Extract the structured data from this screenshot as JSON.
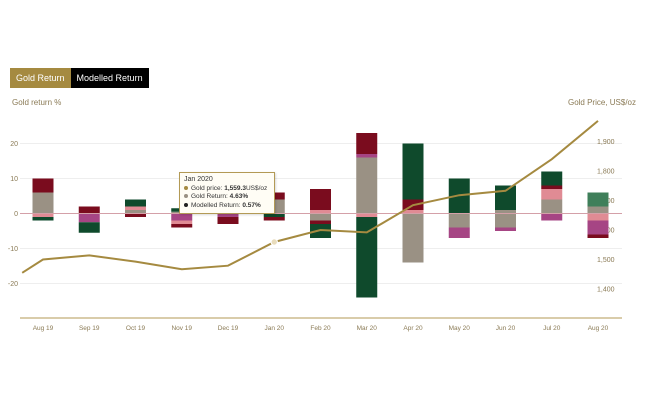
{
  "tabs": [
    {
      "label": "Gold Return",
      "active": true
    },
    {
      "label": "Modelled Return",
      "active": false
    }
  ],
  "colors": {
    "gold": "#a58a40",
    "dark_red": "#7a0c1e",
    "dark_green": "#0f4a2c",
    "grey": "#9a9184",
    "pink": "#e08b94",
    "magenta": "#a64584",
    "mid_green": "#3f7f5a"
  },
  "tooltip": {
    "title": "Jan 2020",
    "gold_price_label": "Gold price: ",
    "gold_price_value": "1,559.3",
    "gold_price_unit": "US$/oz",
    "gold_return_label": "Gold Return: ",
    "gold_return_value": "4.63%",
    "modelled_return_label": "Modelled Return: ",
    "modelled_return_value": "0.57%"
  },
  "chart_data": {
    "type": "bar",
    "ylabel_left": "Gold return %",
    "ylabel_right": "Gold Price, US$/oz",
    "ylim_left": [
      -30,
      30
    ],
    "ylim_right": [
      1300,
      2000
    ],
    "left_ticks": [
      "20",
      "10",
      "0",
      "-10",
      "-20"
    ],
    "left_tick_values": [
      20,
      10,
      0,
      -10,
      -20
    ],
    "right_ticks": [
      "1,900",
      "1,800",
      "1,700",
      "1,600",
      "1,500",
      "1,400"
    ],
    "right_tick_values": [
      1900,
      1800,
      1700,
      1600,
      1500,
      1400
    ],
    "categories": [
      "Aug 19",
      "Sep 19",
      "Oct 19",
      "Nov 19",
      "Dec 19",
      "Jan 20",
      "Feb 20",
      "Mar 20",
      "Apr 20",
      "May 20",
      "Jun 20",
      "Jul 20",
      "Aug 20"
    ],
    "stacked_bars": [
      [
        {
          "c": "grey",
          "v": 1
        },
        {
          "c": "grey",
          "v": 5
        },
        {
          "c": "dark_red",
          "v": 4
        },
        {
          "c": "pink",
          "v": -1
        },
        {
          "c": "dark_green",
          "v": -1
        }
      ],
      [
        {
          "c": "dark_red",
          "v": 2
        },
        {
          "c": "magenta",
          "v": -2.5
        },
        {
          "c": "dark_green",
          "v": -3
        }
      ],
      [
        {
          "c": "grey",
          "v": 1
        },
        {
          "c": "pink",
          "v": 1
        },
        {
          "c": "dark_green",
          "v": 2
        },
        {
          "c": "dark_red",
          "v": -1
        }
      ],
      [
        {
          "c": "grey",
          "v": 0.5
        },
        {
          "c": "dark_green",
          "v": 1
        },
        {
          "c": "magenta",
          "v": -2
        },
        {
          "c": "pink",
          "v": -1
        },
        {
          "c": "dark_red",
          "v": -1
        }
      ],
      [
        {
          "c": "grey",
          "v": 1
        },
        {
          "c": "pink",
          "v": 1
        },
        {
          "c": "magenta",
          "v": -1
        },
        {
          "c": "dark_red",
          "v": -2
        }
      ],
      [
        {
          "c": "grey",
          "v": 4
        },
        {
          "c": "dark_red",
          "v": 2
        },
        {
          "c": "dark_green",
          "v": -1
        },
        {
          "c": "dark_red",
          "v": -1
        }
      ],
      [
        {
          "c": "pink",
          "v": 1
        },
        {
          "c": "dark_red",
          "v": 6
        },
        {
          "c": "grey",
          "v": -2
        },
        {
          "c": "dark_red",
          "v": -1
        },
        {
          "c": "dark_green",
          "v": -4
        }
      ],
      [
        {
          "c": "grey",
          "v": 16
        },
        {
          "c": "magenta",
          "v": 1
        },
        {
          "c": "dark_red",
          "v": 6
        },
        {
          "c": "pink",
          "v": -1
        },
        {
          "c": "dark_green",
          "v": -23
        }
      ],
      [
        {
          "c": "pink",
          "v": 1
        },
        {
          "c": "dark_red",
          "v": 3
        },
        {
          "c": "dark_green",
          "v": 16
        },
        {
          "c": "grey",
          "v": -14
        }
      ],
      [
        {
          "c": "dark_green",
          "v": 10
        },
        {
          "c": "grey",
          "v": -4
        },
        {
          "c": "magenta",
          "v": -3
        }
      ],
      [
        {
          "c": "grey",
          "v": 1
        },
        {
          "c": "dark_green",
          "v": 7
        },
        {
          "c": "grey",
          "v": -4
        },
        {
          "c": "magenta",
          "v": -1
        }
      ],
      [
        {
          "c": "grey",
          "v": 4
        },
        {
          "c": "pink",
          "v": 3
        },
        {
          "c": "dark_red",
          "v": 1
        },
        {
          "c": "dark_green",
          "v": 4
        },
        {
          "c": "magenta",
          "v": -2
        }
      ],
      [
        {
          "c": "grey",
          "v": 2
        },
        {
          "c": "mid_green",
          "v": 4
        },
        {
          "c": "pink",
          "v": -2
        },
        {
          "c": "magenta",
          "v": -4
        },
        {
          "c": "dark_red",
          "v": -1
        }
      ]
    ],
    "line_series": {
      "name": "Gold price",
      "x": [
        -0.45,
        0,
        1,
        2,
        3,
        4,
        5,
        6,
        7,
        8,
        9,
        10,
        11,
        12
      ],
      "y": [
        1455,
        1500,
        1514,
        1493,
        1467,
        1479,
        1559.3,
        1600,
        1592,
        1684,
        1718,
        1733,
        1840,
        1970
      ]
    },
    "highlight_index": 5
  }
}
